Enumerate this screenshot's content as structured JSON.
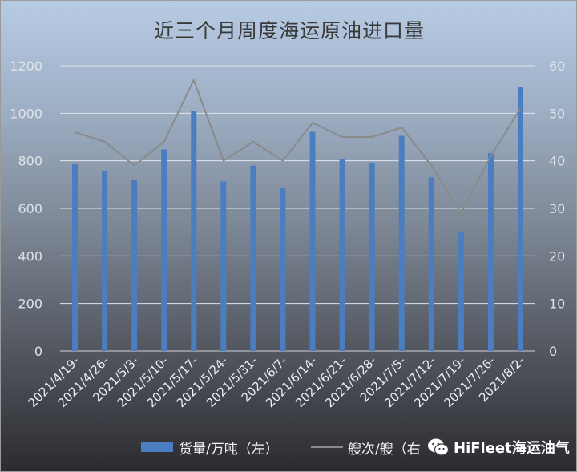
{
  "chart_data": {
    "type": "bar+line",
    "title": "近三个月周度海运原油进口量",
    "categories": [
      "2021/4/19-",
      "2021/4/26-",
      "2021/5/3-",
      "2021/5/10-",
      "2021/5/17-",
      "2021/5/24-",
      "2021/5/31-",
      "2021/6/7-",
      "2021/6/14-",
      "2021/6/21-",
      "2021/6/28-",
      "2021/7/5-",
      "2021/7/12-",
      "2021/7/19-",
      "2021/7/26-",
      "2021/8/2-"
    ],
    "series": [
      {
        "name": "货量/万吨（左）",
        "type": "bar",
        "axis": "left",
        "color": "#4a7ec0",
        "values": [
          785,
          755,
          720,
          848,
          1010,
          713,
          780,
          688,
          922,
          808,
          790,
          905,
          730,
          498,
          833,
          1110
        ]
      },
      {
        "name": "艘次/艘（右",
        "type": "line",
        "axis": "right",
        "color": "#8a8a8a",
        "values": [
          46,
          44,
          39,
          44,
          57,
          40,
          44,
          40,
          48,
          45,
          45,
          47,
          39,
          29,
          41,
          51
        ]
      }
    ],
    "y_left": {
      "min": 0,
      "max": 1200,
      "ticks": [
        0,
        200,
        400,
        600,
        800,
        1000,
        1200
      ]
    },
    "y_right": {
      "min": 0,
      "max": 60,
      "ticks": [
        0,
        10,
        20,
        30,
        40,
        50,
        60
      ]
    },
    "grid": true,
    "legend": "bottom"
  },
  "watermark": {
    "text": "HiFleet海运油气",
    "icon": "wechat-icon"
  }
}
